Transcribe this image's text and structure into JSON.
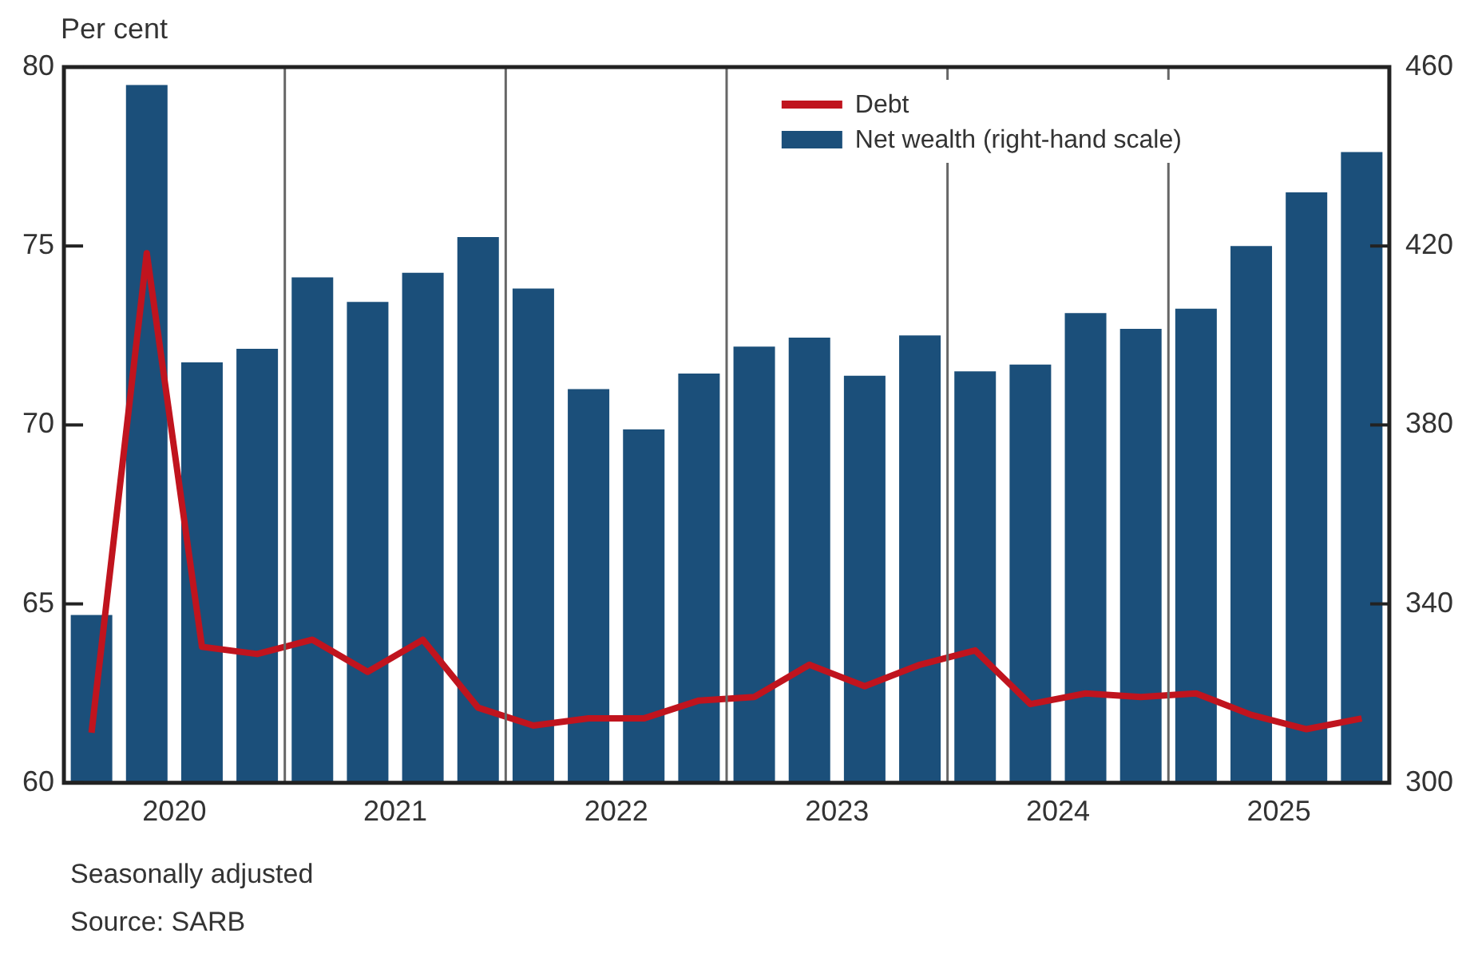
{
  "chart_data": {
    "type": "bar",
    "ylabel": "Per cent",
    "x": [
      2020.125,
      2020.375,
      2020.625,
      2020.875,
      2021.125,
      2021.375,
      2021.625,
      2021.875,
      2022.125,
      2022.375,
      2022.625,
      2022.875,
      2023.125,
      2023.375,
      2023.625,
      2023.875,
      2024.125,
      2024.375,
      2024.625,
      2024.875,
      2025.125,
      2025.375,
      2025.625,
      2025.875
    ],
    "series": [
      {
        "name": "Debt",
        "type": "line",
        "color": "#c0141e",
        "values": [
          61.4,
          74.8,
          63.8,
          63.6,
          64.0,
          63.1,
          64.0,
          62.1,
          61.6,
          61.8,
          61.8,
          62.3,
          62.4,
          63.3,
          62.7,
          63.3,
          63.7,
          62.2,
          62.5,
          62.4,
          62.5,
          61.9,
          61.5,
          61.8
        ]
      },
      {
        "name": "Net wealth (right-hand scale)",
        "axis": "y2",
        "color": "#1b4f7a",
        "values": [
          337.5,
          456,
          394,
          397,
          413,
          407.5,
          414,
          422,
          410.5,
          388,
          379,
          391.5,
          397.5,
          399.5,
          391,
          400,
          392,
          393.5,
          405,
          401.5,
          406,
          420,
          432,
          441
        ]
      }
    ],
    "xlim": [
      2020,
      2026
    ],
    "xticks": [
      {
        "value": 2020.5,
        "label": "2020"
      },
      {
        "value": 2021.5,
        "label": "2021"
      },
      {
        "value": 2022.5,
        "label": "2022"
      },
      {
        "value": 2023.5,
        "label": "2023"
      },
      {
        "value": 2024.5,
        "label": "2024"
      },
      {
        "value": 2025.5,
        "label": "2025"
      }
    ],
    "ylim": [
      60,
      80
    ],
    "yticks": [
      60,
      65,
      70,
      75,
      80
    ],
    "y2lim": [
      300,
      460
    ],
    "y2ticks": [
      300,
      340,
      380,
      420,
      460
    ],
    "ref_lines": [
      {
        "axis": "x",
        "value": 2021,
        "color": "#666666"
      },
      {
        "axis": "x",
        "value": 2022,
        "color": "#666666"
      },
      {
        "axis": "x",
        "value": 2023,
        "color": "#666666"
      },
      {
        "axis": "x",
        "value": 2024,
        "color": "#666666"
      },
      {
        "axis": "x",
        "value": 2025,
        "color": "#666666"
      }
    ],
    "legend": "top right",
    "annotations": [
      "Seasonally adjusted",
      "Source: SARB"
    ]
  }
}
